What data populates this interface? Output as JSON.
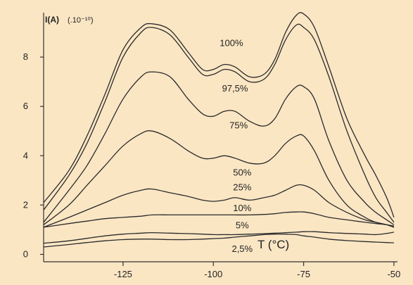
{
  "chart_data": {
    "type": "line",
    "ylabel": "I(A)",
    "ylabel_unit": "(.10⁻¹⁰)",
    "xlabel": "T (°C)",
    "xlim": [
      -147,
      -49
    ],
    "ylim": [
      -0.3,
      9.8
    ],
    "xticks": [
      "-125",
      "-100",
      "-75",
      "-50"
    ],
    "xtick_values": [
      -125,
      -100,
      -75,
      -50
    ],
    "yticks": [
      "0",
      "2",
      "4",
      "6",
      "8"
    ],
    "ytick_values": [
      0,
      2,
      4,
      6,
      8
    ],
    "grid": false,
    "x": [
      -147,
      -140,
      -135,
      -130,
      -125,
      -120,
      -117,
      -112,
      -107,
      -103,
      -100,
      -97,
      -94,
      -90,
      -86,
      -83,
      -80,
      -77,
      -75,
      -72,
      -68,
      -63,
      -58,
      -55,
      -52,
      -50
    ],
    "series": [
      {
        "name": "100%",
        "label_at": [
          -95,
          8.45
        ],
        "values": [
          2.1,
          3.4,
          4.8,
          6.5,
          8.3,
          9.2,
          9.35,
          9.1,
          8.2,
          7.5,
          7.5,
          7.7,
          7.6,
          7.2,
          7.3,
          7.9,
          9.0,
          9.7,
          9.75,
          9.2,
          7.6,
          5.5,
          4.0,
          3.2,
          2.3,
          1.5
        ]
      },
      {
        "name": "97,5%",
        "label_at": [
          -94,
          6.6
        ],
        "values": [
          1.8,
          3.2,
          4.5,
          6.2,
          8.0,
          9.0,
          9.2,
          8.9,
          8.0,
          7.3,
          7.3,
          7.5,
          7.4,
          7.0,
          7.1,
          7.7,
          8.7,
          9.3,
          9.2,
          8.7,
          7.2,
          5.0,
          3.2,
          2.3,
          1.7,
          1.3
        ]
      },
      {
        "name": "75%",
        "label_at": [
          -93,
          5.1
        ],
        "values": [
          1.3,
          2.6,
          3.6,
          4.9,
          6.3,
          7.2,
          7.4,
          7.2,
          6.3,
          5.7,
          5.6,
          5.8,
          5.8,
          5.4,
          5.2,
          5.5,
          6.3,
          6.8,
          6.8,
          6.3,
          4.6,
          3.0,
          2.1,
          1.7,
          1.4,
          1.2
        ]
      },
      {
        "name": "50%",
        "label_at": [
          -92,
          3.2
        ],
        "values": [
          1.2,
          2.0,
          2.8,
          3.6,
          4.4,
          4.9,
          5.0,
          4.7,
          4.2,
          3.9,
          3.9,
          4.0,
          3.9,
          3.7,
          3.7,
          4.0,
          4.5,
          4.8,
          4.8,
          4.2,
          3.0,
          2.0,
          1.5,
          1.3,
          1.2,
          1.1
        ]
      },
      {
        "name": "25%",
        "label_at": [
          -92,
          2.6
        ],
        "values": [
          1.1,
          1.5,
          1.8,
          2.1,
          2.4,
          2.6,
          2.65,
          2.5,
          2.35,
          2.2,
          2.15,
          2.2,
          2.3,
          2.2,
          2.3,
          2.4,
          2.6,
          2.8,
          2.8,
          2.6,
          2.1,
          1.7,
          1.4,
          1.3,
          1.2,
          1.1
        ]
      },
      {
        "name": "10%",
        "label_at": [
          -92,
          1.75
        ],
        "values": [
          1.1,
          1.25,
          1.35,
          1.45,
          1.5,
          1.55,
          1.6,
          1.6,
          1.6,
          1.6,
          1.6,
          1.6,
          1.6,
          1.6,
          1.62,
          1.65,
          1.7,
          1.72,
          1.72,
          1.65,
          1.5,
          1.4,
          1.3,
          1.25,
          1.2,
          1.15
        ]
      },
      {
        "name": "5%",
        "label_at": [
          -92,
          1.05
        ],
        "values": [
          0.45,
          0.55,
          0.65,
          0.75,
          0.82,
          0.86,
          0.88,
          0.86,
          0.84,
          0.82,
          0.8,
          0.8,
          0.8,
          0.82,
          0.84,
          0.86,
          0.88,
          0.9,
          0.92,
          0.92,
          0.88,
          0.85,
          0.82,
          0.8,
          0.85,
          0.9
        ]
      },
      {
        "name": "2,5%",
        "label_at": [
          -92,
          0.1
        ],
        "values": [
          0.3,
          0.4,
          0.48,
          0.55,
          0.6,
          0.62,
          0.62,
          0.6,
          0.6,
          0.62,
          0.64,
          0.66,
          0.7,
          0.75,
          0.8,
          0.82,
          0.82,
          0.8,
          0.75,
          0.7,
          0.62,
          0.56,
          0.52,
          0.5,
          0.48,
          0.47
        ]
      }
    ]
  }
}
